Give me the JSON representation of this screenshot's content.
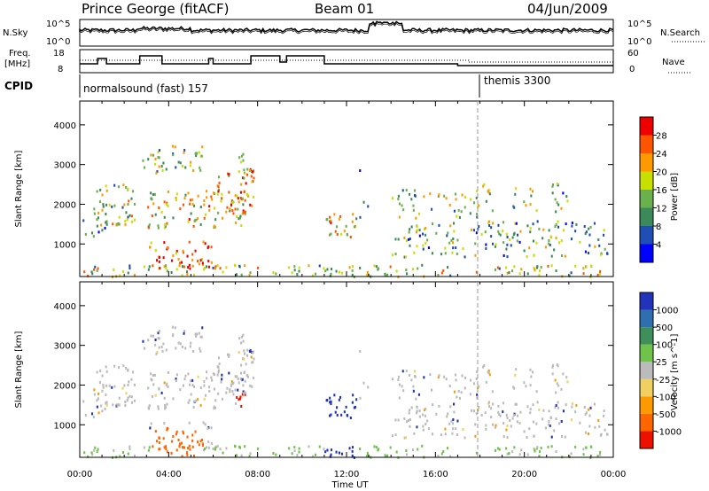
{
  "header": {
    "station": "Prince George (fitACF)",
    "beam": "Beam 01",
    "date": "04/Jun/2009"
  },
  "nsky_panel": {
    "left_label": "N.Sky",
    "right_label": "N.Search",
    "top_tick": "10^5",
    "bottom_tick": "10^0",
    "right_top_tick": "10^5",
    "right_bottom_tick": "10^0"
  },
  "freq_panel": {
    "left_label_1": "Freq.",
    "left_label_2": "[MHz]",
    "left_top_tick": "18",
    "left_bottom_tick": "8",
    "right_label": "Nave",
    "right_top_tick": "60",
    "right_bottom_tick": "0"
  },
  "cpid_panel": {
    "label": "CPID",
    "program_1": "normalsound (fast) 157",
    "program_2": "themis 3300"
  },
  "chart_data": [
    {
      "type": "heatmap",
      "title": "",
      "xlabel": "Time UT",
      "ylabel": "Slant Range [km]",
      "x_ticks": [
        "00:00",
        "04:00",
        "08:00",
        "12:00",
        "16:00",
        "20:00",
        "00:00"
      ],
      "y_ticks": [
        "1000",
        "2000",
        "3000",
        "4000"
      ],
      "xlim_hours": [
        0,
        24
      ],
      "ylim_km": [
        180,
        4600
      ],
      "colorbar": {
        "label": "Power [dB]",
        "ticks": [
          "4",
          "8",
          "12",
          "16",
          "20",
          "24",
          "28"
        ],
        "range": [
          0,
          30
        ],
        "colors": [
          "#0000ff",
          "#1f4fb4",
          "#3c8a5a",
          "#6ab04c",
          "#c8e000",
          "#ff9900",
          "#ff5500",
          "#ee0000"
        ]
      }
    },
    {
      "type": "heatmap",
      "title": "",
      "xlabel": "Time UT",
      "ylabel": "Slant Range [km]",
      "x_ticks": [
        "00:00",
        "04:00",
        "08:00",
        "12:00",
        "16:00",
        "20:00",
        "00:00"
      ],
      "y_ticks": [
        "1000",
        "2000",
        "3000",
        "4000"
      ],
      "xlim_hours": [
        0,
        24
      ],
      "ylim_km": [
        180,
        4600
      ],
      "colorbar": {
        "label": "Velocity [m s^-1]",
        "ticks": [
          "1000",
          "500",
          "100",
          "25",
          "-25",
          "-100",
          "-500",
          "-1000"
        ],
        "colors": [
          "#2233bb",
          "#2f6fb0",
          "#3f8f5a",
          "#6fc24a",
          "#bbbbbb",
          "#f0d060",
          "#ff9900",
          "#ff6600",
          "#ee1100"
        ]
      }
    }
  ],
  "x_axis_label": "Time UT"
}
